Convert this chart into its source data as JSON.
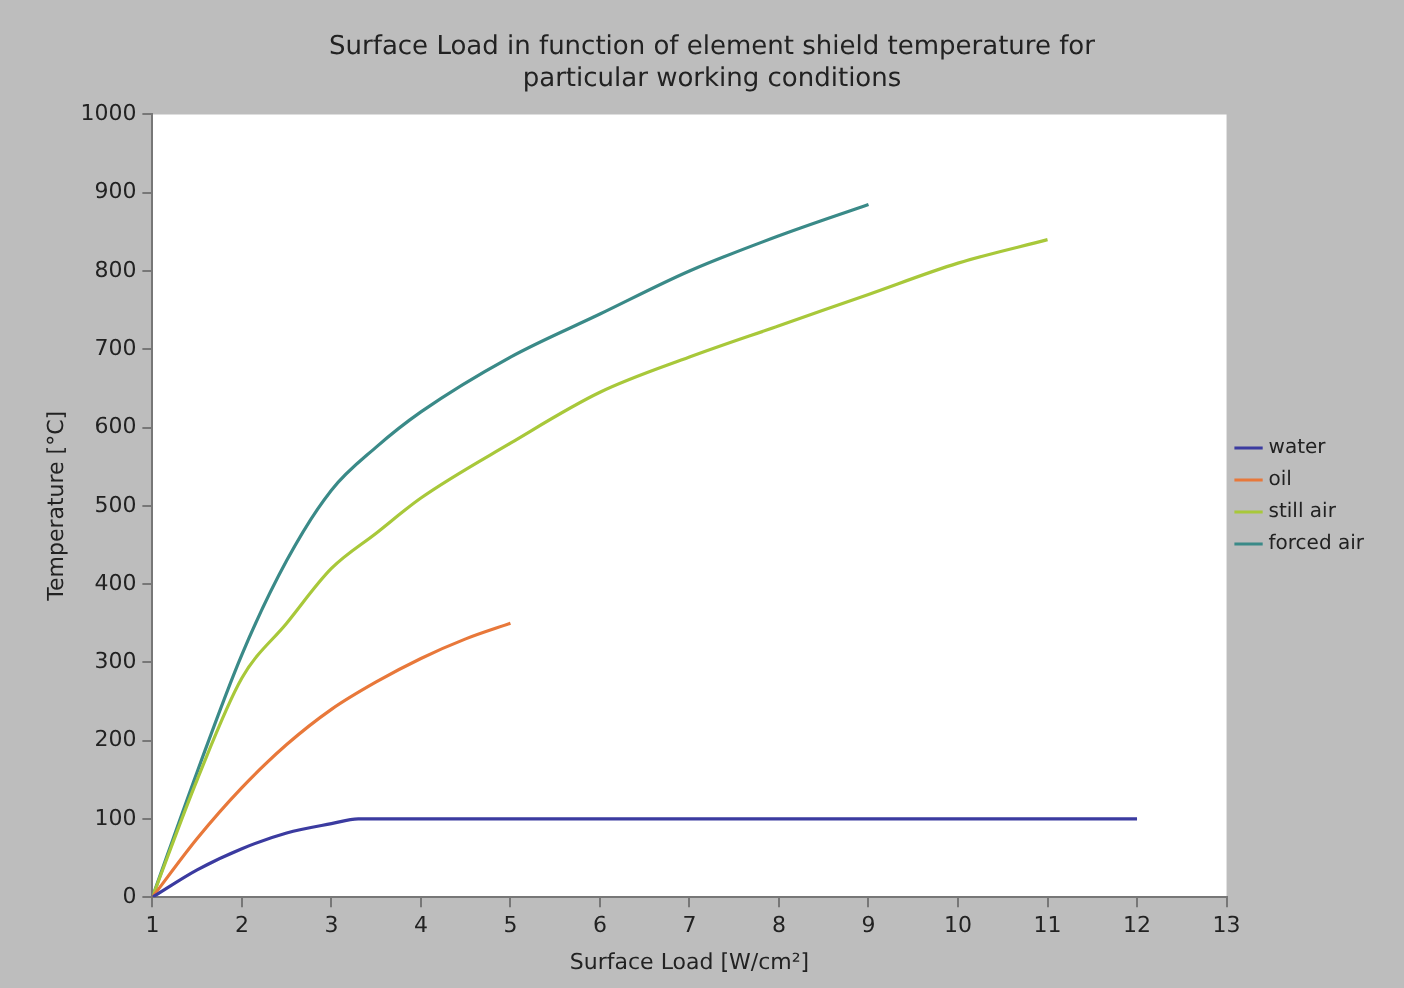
{
  "chart_data": {
    "type": "line",
    "title": "Surface Load in function of element shield temperature for\nparticular working conditions",
    "xlabel": "Surface Load [W/cm²]",
    "ylabel": "Temperature [°C]",
    "xlim": [
      1,
      13
    ],
    "xticks": [
      1,
      2,
      3,
      4,
      5,
      6,
      7,
      8,
      9,
      10,
      11,
      12,
      13
    ],
    "ylim": [
      0,
      1000
    ],
    "yticks": [
      0,
      100,
      200,
      300,
      400,
      500,
      600,
      700,
      800,
      900,
      1000
    ],
    "grid": false,
    "legend": "right",
    "marker": "none",
    "line_style": "solid",
    "series": [
      {
        "name": "water",
        "color": "#3b3ba0",
        "x": [
          1,
          1.5,
          2,
          2.5,
          3,
          3.3,
          4,
          12
        ],
        "values": [
          0,
          35,
          62,
          82,
          94,
          100,
          100,
          100
        ]
      },
      {
        "name": "oil",
        "color": "#e8783a",
        "x": [
          1,
          1.5,
          2,
          2.5,
          3,
          3.5,
          4,
          4.5,
          5
        ],
        "values": [
          0,
          75,
          140,
          195,
          240,
          275,
          305,
          330,
          350
        ]
      },
      {
        "name": "still air",
        "color": "#a8c83a",
        "x": [
          1,
          1.5,
          2,
          2.5,
          3,
          3.5,
          4,
          5,
          6,
          7,
          8,
          9,
          10,
          11
        ],
        "values": [
          0,
          150,
          280,
          350,
          420,
          465,
          510,
          580,
          645,
          690,
          730,
          770,
          810,
          840
        ]
      },
      {
        "name": "forced air",
        "color": "#3a8a88",
        "x": [
          1,
          1.5,
          2,
          2.5,
          3,
          3.5,
          4,
          5,
          6,
          7,
          8,
          9
        ],
        "values": [
          0,
          160,
          310,
          430,
          520,
          575,
          620,
          690,
          745,
          800,
          845,
          885
        ]
      }
    ]
  }
}
